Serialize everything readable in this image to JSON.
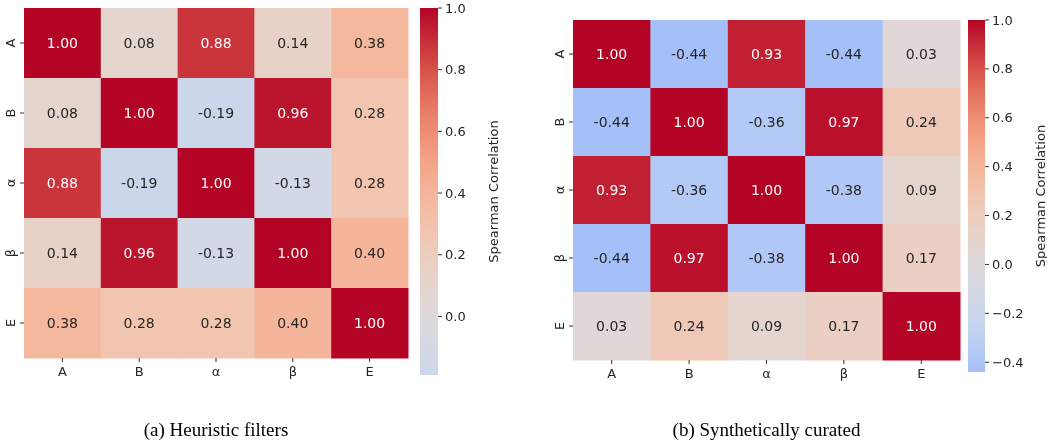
{
  "chart_data": [
    {
      "type": "heatmap",
      "title": "(a) Heuristic filters",
      "clabel": "Spearman Correlation",
      "categories": [
        "A",
        "B",
        "α",
        "β",
        "E"
      ],
      "y_categories": [
        "A",
        "B",
        "α",
        "β",
        "E"
      ],
      "cells": [
        [
          1.0,
          0.08,
          0.88,
          0.14,
          0.38
        ],
        [
          0.08,
          1.0,
          -0.19,
          0.96,
          0.28
        ],
        [
          0.88,
          -0.19,
          1.0,
          -0.13,
          0.28
        ],
        [
          0.14,
          0.96,
          -0.13,
          1.0,
          0.4
        ],
        [
          0.38,
          0.28,
          0.28,
          0.4,
          1.0
        ]
      ],
      "cell_labels": [
        [
          "1.00",
          "0.08",
          "0.88",
          "0.14",
          "0.38"
        ],
        [
          "0.08",
          "1.00",
          "-0.19",
          "0.96",
          "0.28"
        ],
        [
          "0.88",
          "-0.19",
          "1.00",
          "-0.13",
          "0.28"
        ],
        [
          "0.14",
          "0.96",
          "-0.13",
          "1.00",
          "0.40"
        ],
        [
          "0.38",
          "0.28",
          "0.28",
          "0.40",
          "1.00"
        ]
      ],
      "data_labels": true,
      "clim": [
        -0.19,
        1.0
      ],
      "cticks": [
        {
          "value": 0,
          "label": "0.0"
        },
        {
          "value": 0.2,
          "label": "0.2"
        },
        {
          "value": 0.4,
          "label": "0.4"
        },
        {
          "value": 0.6,
          "label": "0.6"
        },
        {
          "value": 0.8,
          "label": "0.8"
        },
        {
          "value": 1,
          "label": "1.0"
        }
      ]
    },
    {
      "type": "heatmap",
      "title": "(b) Synthetically curated",
      "clabel": "Spearman Correlation",
      "categories": [
        "A",
        "B",
        "α",
        "β",
        "E"
      ],
      "y_categories": [
        "A",
        "B",
        "α",
        "β",
        "E"
      ],
      "cells": [
        [
          1.0,
          -0.44,
          0.93,
          -0.44,
          0.03
        ],
        [
          -0.44,
          1.0,
          -0.36,
          0.97,
          0.24
        ],
        [
          0.93,
          -0.36,
          1.0,
          -0.38,
          0.09
        ],
        [
          -0.44,
          0.97,
          -0.38,
          1.0,
          0.17
        ],
        [
          0.03,
          0.24,
          0.09,
          0.17,
          1.0
        ]
      ],
      "cell_labels": [
        [
          "1.00",
          "-0.44",
          "0.93",
          "-0.44",
          "0.03"
        ],
        [
          "-0.44",
          "1.00",
          "-0.36",
          "0.97",
          "0.24"
        ],
        [
          "0.93",
          "-0.36",
          "1.00",
          "-0.38",
          "0.09"
        ],
        [
          "-0.44",
          "0.97",
          "-0.38",
          "1.00",
          "0.17"
        ],
        [
          "0.03",
          "0.24",
          "0.09",
          "0.17",
          "1.00"
        ]
      ],
      "data_labels": true,
      "clim": [
        -0.44,
        1.0
      ],
      "cticks": [
        {
          "value": -0.4,
          "label": "−0.4"
        },
        {
          "value": -0.2,
          "label": "−0.2"
        },
        {
          "value": 0,
          "label": "0.0"
        },
        {
          "value": 0.2,
          "label": "0.2"
        },
        {
          "value": 0.4,
          "label": "0.4"
        },
        {
          "value": 0.6,
          "label": "0.6"
        },
        {
          "value": 0.8,
          "label": "0.8"
        },
        {
          "value": 1,
          "label": "1.0"
        }
      ]
    }
  ]
}
